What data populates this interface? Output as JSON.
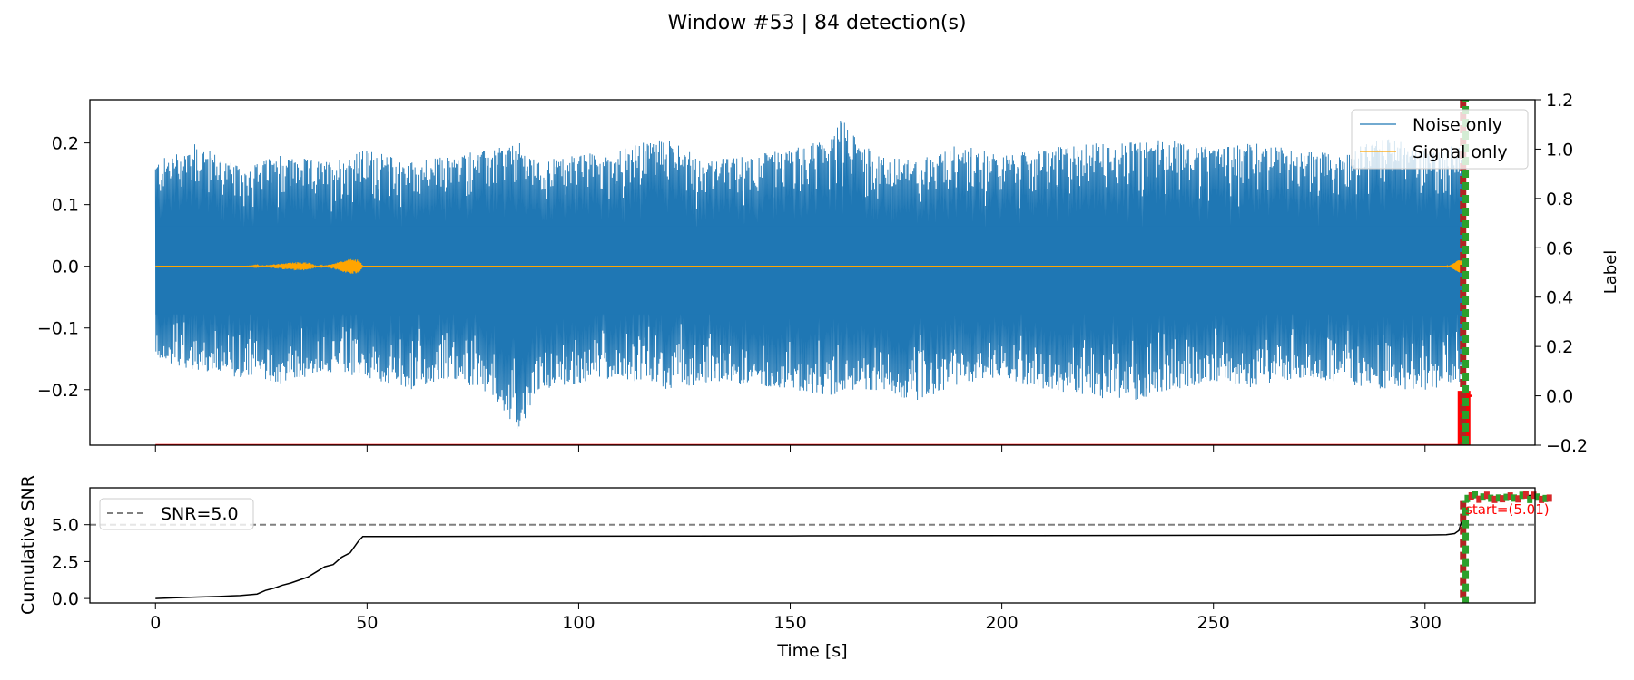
{
  "title": "Window #53 | 84 detection(s)",
  "colors": {
    "noise": "#1f77b4",
    "signal": "#ffa500",
    "label": "#ff0000",
    "detection": "#2ca02c",
    "cumsnr": "#000000",
    "threshold": "#808080",
    "annotation": "#ff0000"
  },
  "chart_data": [
    {
      "type": "line",
      "panel": "top",
      "ylim": [
        -0.29,
        0.27
      ],
      "y_ticks": [
        -0.2,
        -0.1,
        0.0,
        0.1,
        0.2
      ],
      "y_tick_labels": [
        "−0.2",
        "−0.1",
        "0.0",
        "0.1",
        "0.2"
      ],
      "y2label": "Label",
      "y2lim": [
        -0.2,
        1.2
      ],
      "y2_ticks": [
        -0.2,
        0.0,
        0.2,
        0.4,
        0.6,
        0.8,
        1.0,
        1.2
      ],
      "y2_tick_labels": [
        "−0.2",
        "0.0",
        "0.2",
        "0.4",
        "0.6",
        "0.8",
        "1.0",
        "1.2"
      ],
      "xlim": [
        -15.5,
        326
      ],
      "grid": false,
      "legend_position": "top-right",
      "series": [
        {
          "name": "Noise only",
          "x_range": [
            0,
            309
          ],
          "envelope_x": [
            0,
            10,
            20,
            30,
            40,
            50,
            60,
            70,
            80,
            86,
            90,
            100,
            110,
            120,
            130,
            140,
            150,
            160,
            162,
            170,
            180,
            190,
            200,
            210,
            220,
            230,
            240,
            250,
            260,
            270,
            280,
            290,
            300,
            309
          ],
          "envelope_upper": [
            0.17,
            0.2,
            0.16,
            0.18,
            0.17,
            0.19,
            0.17,
            0.18,
            0.19,
            0.2,
            0.17,
            0.18,
            0.19,
            0.21,
            0.17,
            0.18,
            0.19,
            0.21,
            0.24,
            0.18,
            0.17,
            0.2,
            0.18,
            0.19,
            0.2,
            0.2,
            0.21,
            0.19,
            0.2,
            0.19,
            0.18,
            0.21,
            0.19,
            0.2
          ],
          "envelope_lower": [
            -0.15,
            -0.17,
            -0.18,
            -0.19,
            -0.17,
            -0.18,
            -0.2,
            -0.18,
            -0.21,
            -0.27,
            -0.2,
            -0.19,
            -0.18,
            -0.2,
            -0.19,
            -0.19,
            -0.2,
            -0.21,
            -0.2,
            -0.2,
            -0.22,
            -0.19,
            -0.18,
            -0.2,
            -0.21,
            -0.22,
            -0.2,
            -0.19,
            -0.2,
            -0.18,
            -0.19,
            -0.2,
            -0.2,
            -0.19
          ]
        },
        {
          "name": "Signal only",
          "x_range": [
            0,
            309
          ],
          "bursts": [
            {
              "x_start": 20,
              "x_end": 38,
              "peak": 0.012
            },
            {
              "x_start": 38,
              "x_end": 49,
              "peak": 0.022
            },
            {
              "x_start": 305,
              "x_end": 309,
              "peak": 0.018
            }
          ]
        },
        {
          "name": "",
          "axis": "y2",
          "x": [
            0,
            308.5,
            309,
            311
          ],
          "y": [
            -0.2,
            -0.2,
            0.0,
            0.0
          ]
        }
      ]
    },
    {
      "type": "line",
      "panel": "bottom",
      "xlabel": "Time [s]",
      "ylabel": "Cumulative SNR",
      "xlim": [
        -15.5,
        326
      ],
      "ylim": [
        -0.3,
        7.5
      ],
      "x_ticks": [
        0,
        50,
        100,
        150,
        200,
        250,
        300
      ],
      "x_tick_labels": [
        "0",
        "50",
        "100",
        "150",
        "200",
        "250",
        "300"
      ],
      "y_ticks": [
        0.0,
        2.5,
        5.0
      ],
      "y_tick_labels": [
        "0.0",
        "2.5",
        "5.0"
      ],
      "grid": false,
      "legend_position": "top-left",
      "threshold": {
        "name": "SNR=5.0",
        "y": 5.0
      },
      "series": [
        {
          "name": "",
          "x": [
            0,
            5,
            10,
            15,
            20,
            24,
            26,
            28,
            30,
            32,
            34,
            36,
            38,
            40,
            42,
            44,
            46,
            48,
            49,
            60,
            100,
            150,
            200,
            250,
            300,
            305,
            307,
            308,
            308.5,
            309,
            310,
            312,
            315,
            320,
            326
          ],
          "y": [
            0.0,
            0.05,
            0.1,
            0.14,
            0.2,
            0.3,
            0.55,
            0.7,
            0.9,
            1.05,
            1.25,
            1.45,
            1.8,
            2.15,
            2.3,
            2.8,
            3.1,
            3.9,
            4.2,
            4.2,
            4.22,
            4.24,
            4.26,
            4.28,
            4.3,
            4.32,
            4.4,
            4.6,
            5.1,
            6.2,
            6.7,
            6.85,
            6.8,
            6.9,
            7.0
          ]
        }
      ],
      "annotation": {
        "text": "start=(5.01)",
        "x": 309,
        "y": 5.01
      }
    }
  ]
}
